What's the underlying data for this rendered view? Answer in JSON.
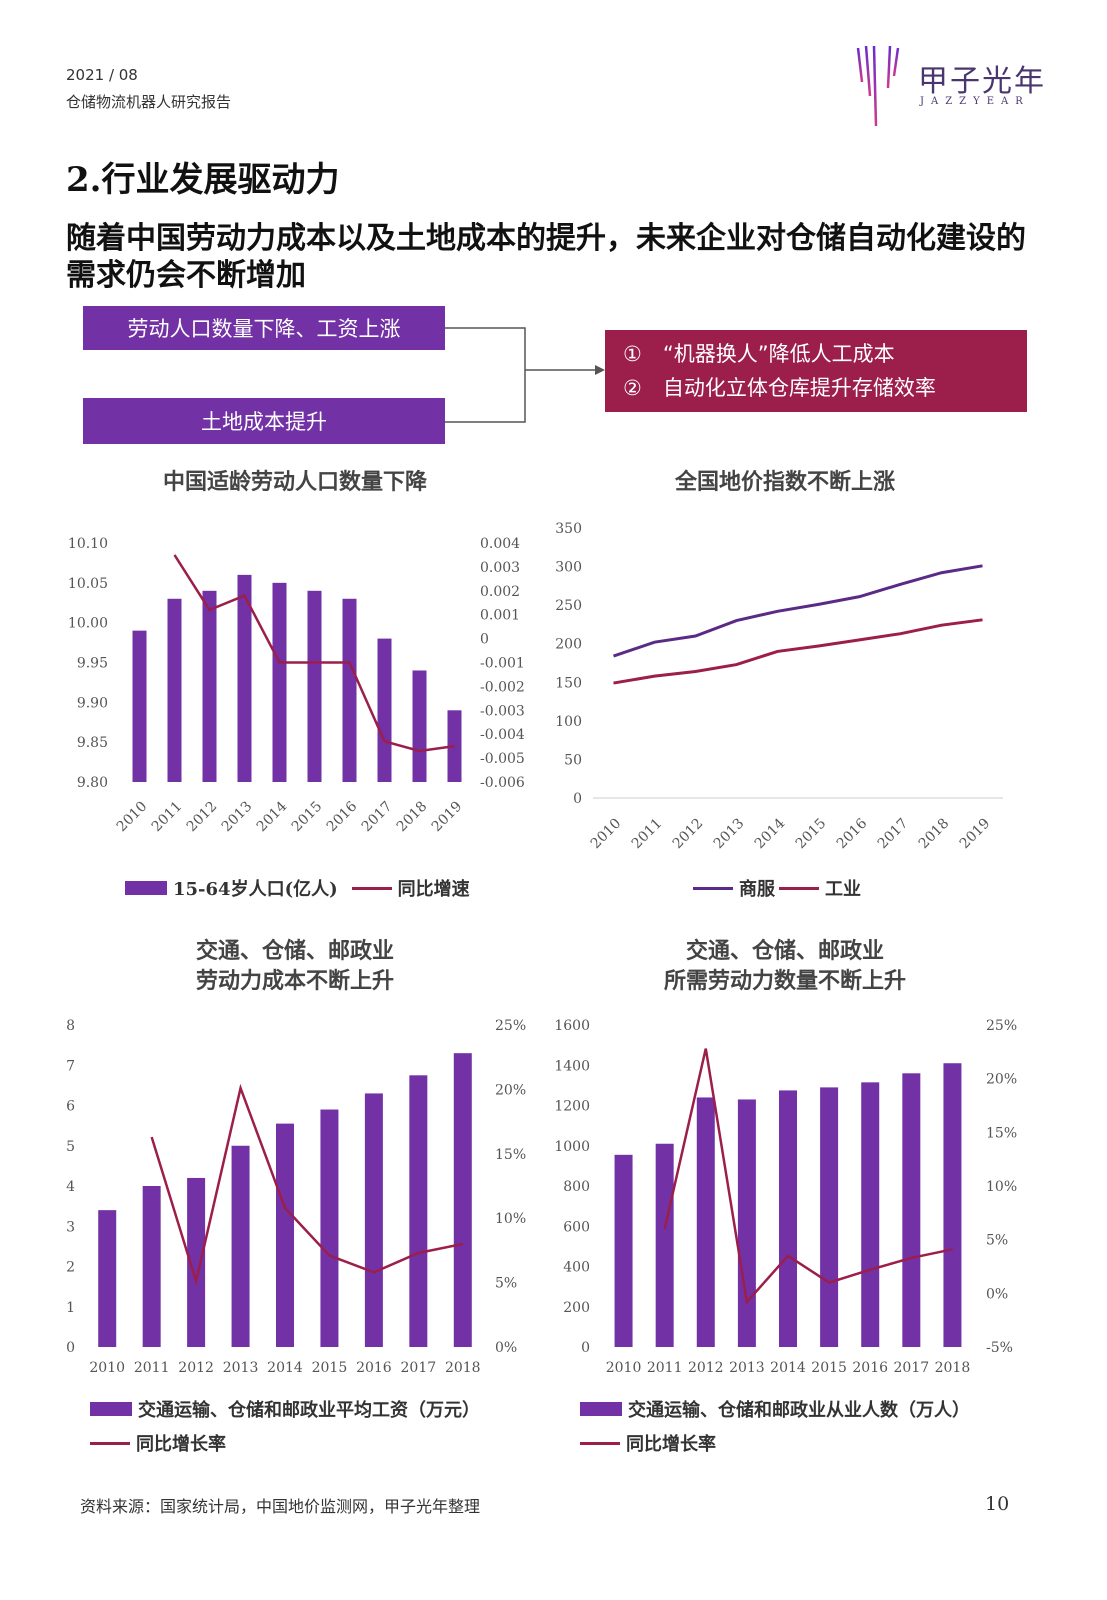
{
  "header": {
    "date": "2021 / 08",
    "report_title": "仓储物流机器人研究报告",
    "logo_cn": "甲子光年",
    "logo_en": "JAZZYEAR"
  },
  "section_title": "2.行业发展驱动力",
  "headline": "随着中国劳动力成本以及土地成本的提升，未来企业对仓储自动化建设的需求仍会不断增加",
  "drivers": {
    "box1": "劳动人口数量下降、工资上涨",
    "box2": "土地成本提升",
    "result1": "①　“机器换人”降低人工成本",
    "result2": "②　自动化立体仓库提升存储效率"
  },
  "colors": {
    "purple": "#7232a6",
    "crimson": "#9c1e4a",
    "dark_purple": "#5b2a86"
  },
  "chart_data": [
    {
      "type": "bar",
      "title": "中国适龄劳动人口数量下降",
      "categories": [
        "2010",
        "2011",
        "2012",
        "2013",
        "2014",
        "2015",
        "2016",
        "2017",
        "2018",
        "2019"
      ],
      "series": [
        {
          "name": "15-64岁人口(亿人)",
          "type": "bar",
          "axis": "left",
          "values": [
            9.99,
            10.03,
            10.04,
            10.06,
            10.05,
            10.04,
            10.03,
            9.98,
            9.94,
            9.89
          ]
        },
        {
          "name": "同比增速",
          "type": "line",
          "axis": "right",
          "values": [
            null,
            0.0035,
            0.0012,
            0.0018,
            -0.001,
            -0.001,
            -0.001,
            -0.0043,
            -0.0047,
            -0.0045
          ]
        }
      ],
      "left_ticks": [
        "10.10",
        "10.05",
        "10.00",
        "9.95",
        "9.90",
        "9.85",
        "9.80"
      ],
      "right_ticks": [
        "0.004",
        "0.003",
        "0.002",
        "0.001",
        "0",
        "-0.001",
        "-0.002",
        "-0.003",
        "-0.004",
        "-0.005",
        "-0.006"
      ],
      "ylim_left": [
        9.8,
        10.1
      ],
      "ylim_right": [
        -0.006,
        0.004
      ],
      "legend_position": "bottom"
    },
    {
      "type": "line",
      "title": "全国地价指数不断上涨",
      "categories": [
        "2010",
        "2011",
        "2012",
        "2013",
        "2014",
        "2015",
        "2016",
        "2017",
        "2018",
        "2019"
      ],
      "series": [
        {
          "name": "商服",
          "values": [
            184,
            202,
            210,
            230,
            242,
            251,
            261,
            277,
            292,
            301
          ]
        },
        {
          "name": "工业",
          "values": [
            149,
            158,
            164,
            173,
            190,
            197,
            205,
            213,
            224,
            231
          ]
        }
      ],
      "left_ticks": [
        "350",
        "300",
        "250",
        "200",
        "150",
        "100",
        "50",
        "0"
      ],
      "ylim": [
        0,
        350
      ],
      "legend_position": "bottom"
    },
    {
      "type": "bar",
      "title": "交通、仓储、邮政业劳动力成本不断上升",
      "title_lines": [
        "交通、仓储、邮政业",
        "劳动力成本不断上升"
      ],
      "categories": [
        "2010",
        "2011",
        "2012",
        "2013",
        "2014",
        "2015",
        "2016",
        "2017",
        "2018"
      ],
      "series": [
        {
          "name": "交通运输、仓储和邮政业平均工资（万元）",
          "type": "bar",
          "axis": "left",
          "values": [
            3.4,
            4.0,
            4.2,
            5.0,
            5.55,
            5.9,
            6.3,
            6.75,
            7.3
          ]
        },
        {
          "name": "同比增长率",
          "type": "line",
          "axis": "right",
          "values": [
            null,
            16.3,
            5.1,
            20.1,
            10.8,
            7.1,
            5.8,
            7.3,
            8.0
          ]
        }
      ],
      "left_ticks": [
        "8",
        "7",
        "6",
        "5",
        "4",
        "3",
        "2",
        "1",
        "0"
      ],
      "right_ticks": [
        "25%",
        "20%",
        "15%",
        "10%",
        "5%",
        "0%"
      ],
      "ylim_left": [
        0,
        8
      ],
      "ylim_right": [
        0,
        25
      ],
      "legend_position": "bottom"
    },
    {
      "type": "bar",
      "title": "交通、仓储、邮政业所需劳动力数量不断上升",
      "title_lines": [
        "交通、仓储、邮政业",
        "所需劳动力数量不断上升"
      ],
      "categories": [
        "2010",
        "2011",
        "2012",
        "2013",
        "2014",
        "2015",
        "2016",
        "2017",
        "2018"
      ],
      "series": [
        {
          "name": "交通运输、仓储和邮政业从业人数（万人）",
          "type": "bar",
          "axis": "left",
          "values": [
            955,
            1010,
            1240,
            1230,
            1275,
            1290,
            1315,
            1360,
            1410
          ]
        },
        {
          "name": "同比增长率",
          "type": "line",
          "axis": "right",
          "values": [
            null,
            6.0,
            22.8,
            -0.8,
            3.5,
            1.0,
            2.2,
            3.3,
            4.1
          ]
        }
      ],
      "left_ticks": [
        "1600",
        "1400",
        "1200",
        "1000",
        "800",
        "600",
        "400",
        "200",
        "0"
      ],
      "right_ticks": [
        "25%",
        "20%",
        "15%",
        "10%",
        "5%",
        "0%",
        "-5%"
      ],
      "ylim_left": [
        0,
        1600
      ],
      "ylim_right": [
        -5,
        25
      ],
      "legend_position": "bottom"
    }
  ],
  "legends": {
    "c1_bar": "15-64岁人口(亿人)",
    "c1_line": "同比增速",
    "c2_a": "商服",
    "c2_b": "工业",
    "c3_bar": "交通运输、仓储和邮政业平均工资（万元）",
    "c3_line": "同比增长率",
    "c4_bar": "交通运输、仓储和邮政业从业人数（万人）",
    "c4_line": "同比增长率"
  },
  "footer": {
    "source": "资料来源：国家统计局，中国地价监测网，甲子光年整理",
    "page_number": "10"
  }
}
